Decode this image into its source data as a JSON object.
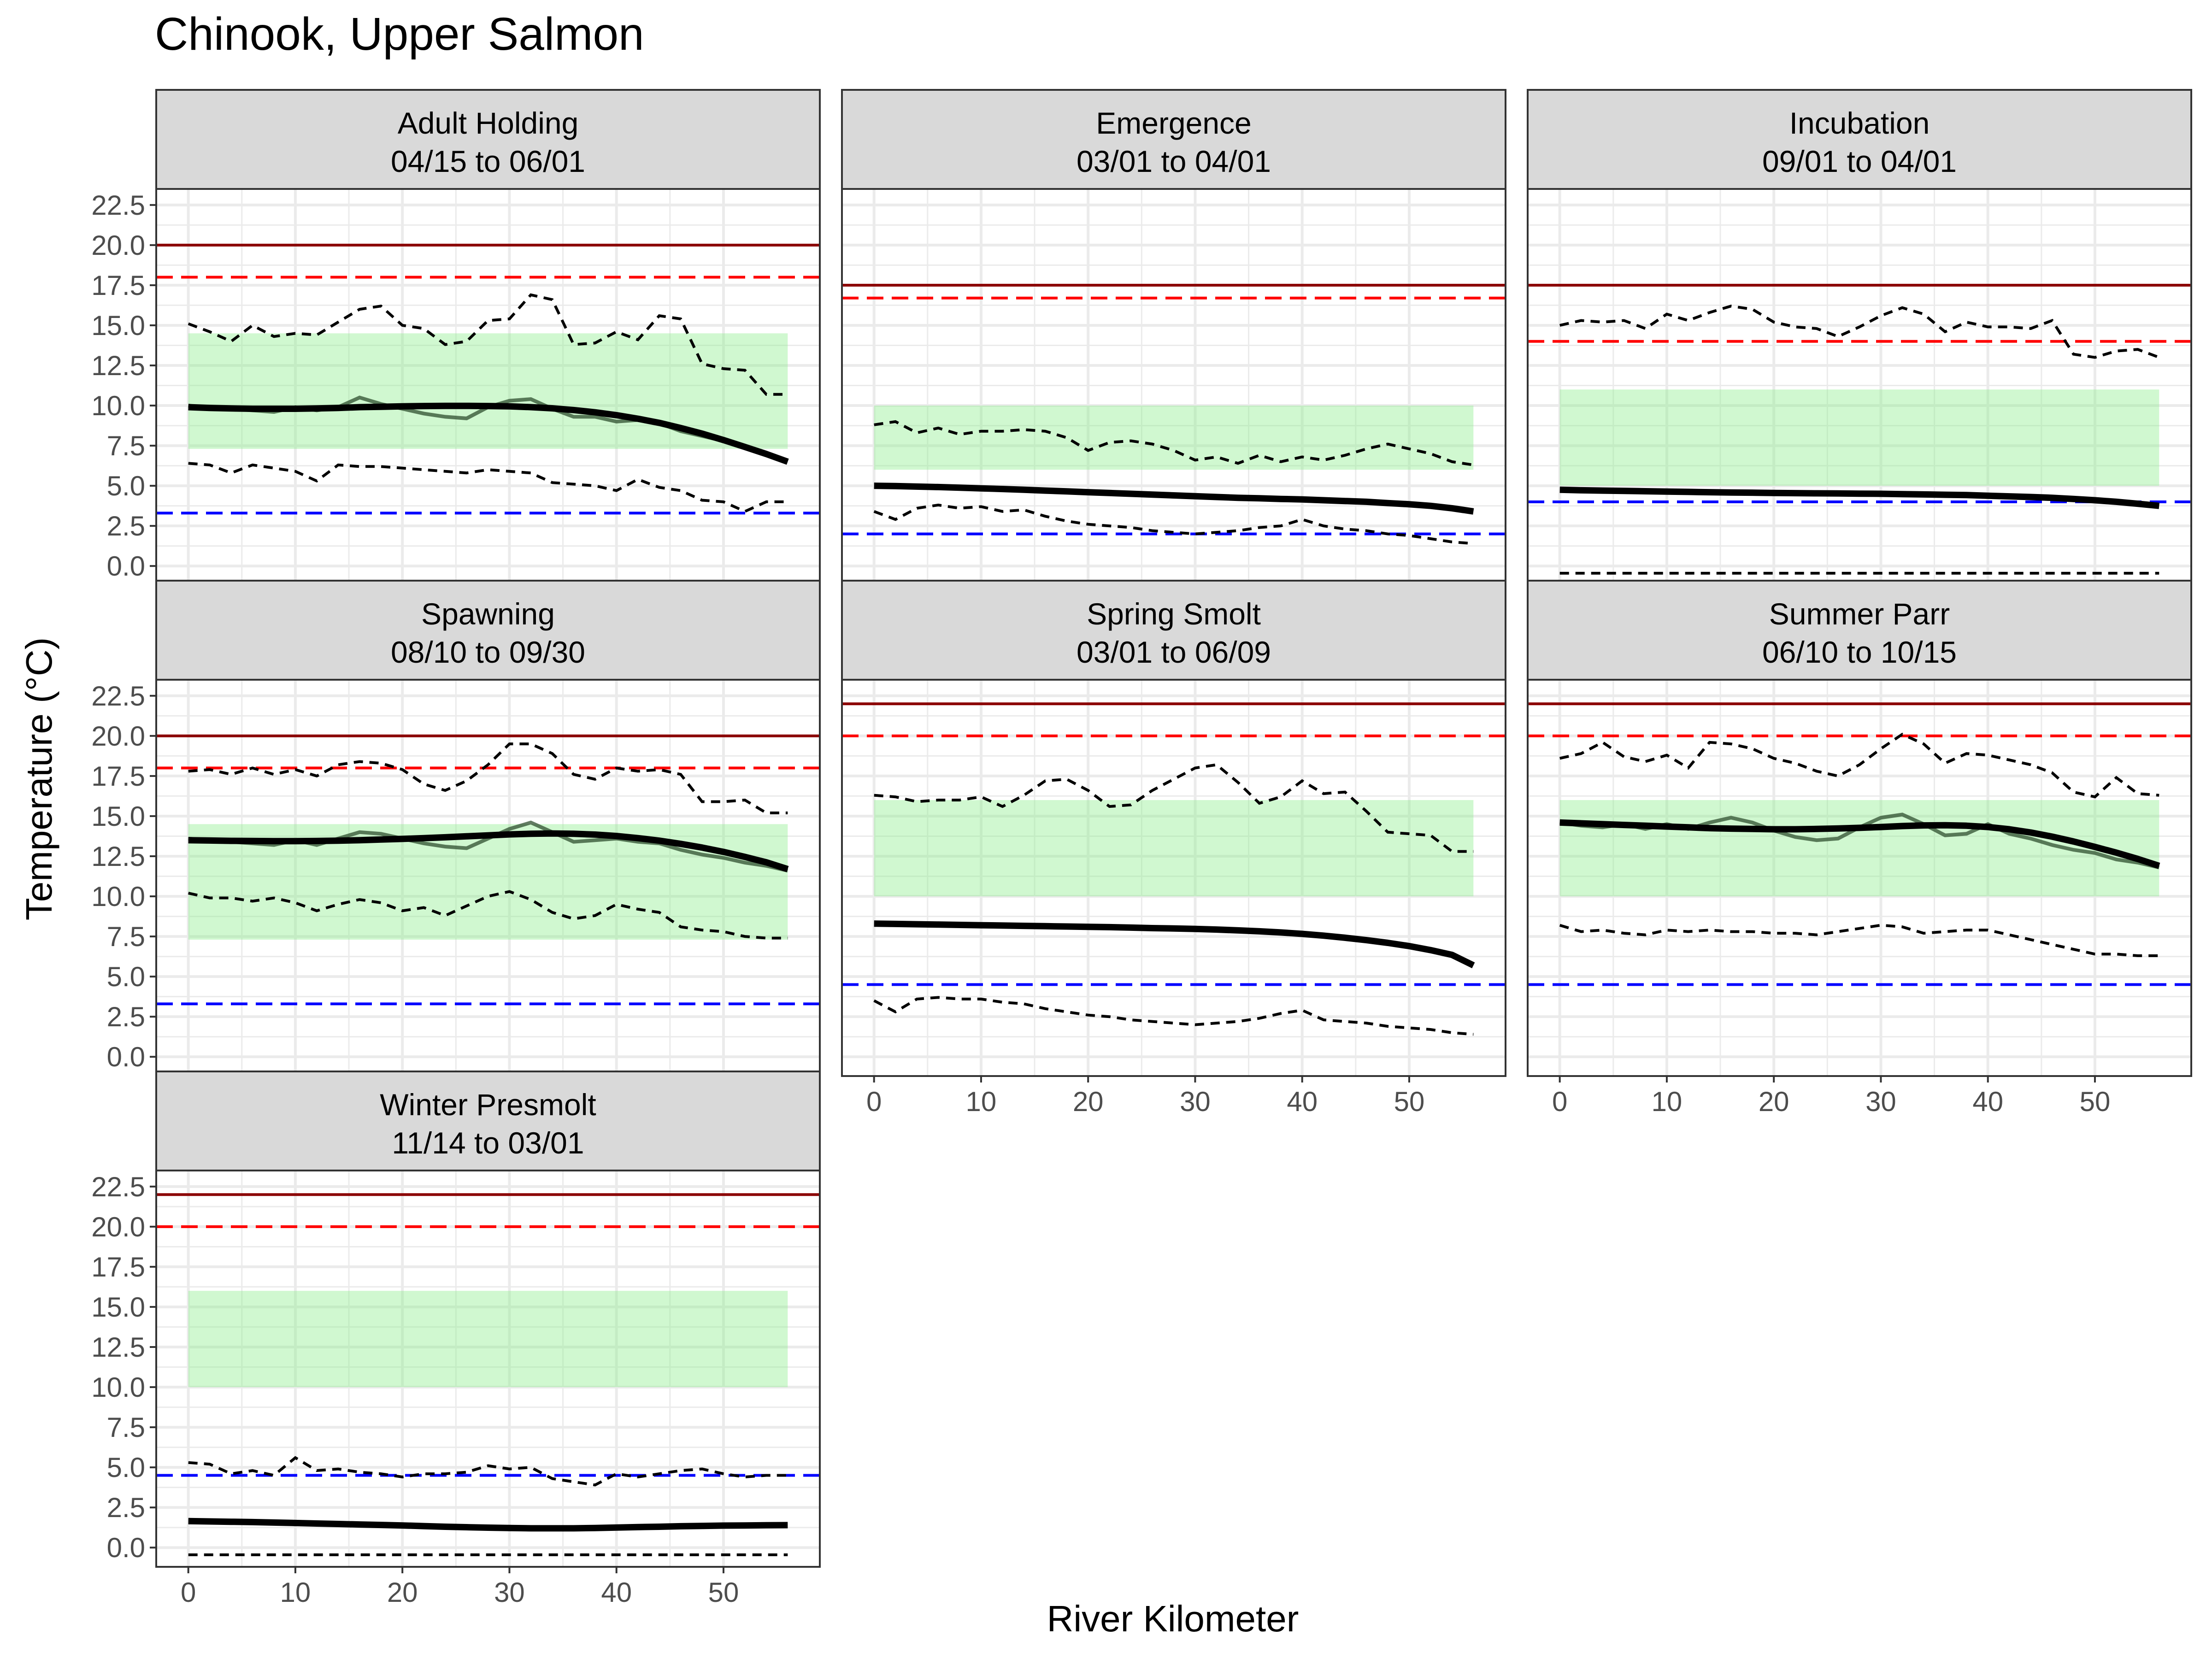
{
  "title": "Chinook, Upper Salmon",
  "xlabel": "River Kilometer",
  "ylabel": "Temperature (°C)",
  "colors": {
    "strip": "#d9d9d9",
    "criterion": "#8b0000",
    "upper_threshold": "#ff0000",
    "lower_threshold": "#0000ff",
    "optimal_band": "#90ee90",
    "median": "#000000",
    "observed": "#2f4f2f",
    "grid": "#ebebeb"
  },
  "chart_data": {
    "type": "line",
    "layout": "facet_wrap 3 columns",
    "xlim": [
      -3,
      59
    ],
    "ylim": [
      -1.2,
      23.5
    ],
    "x_ticks": [
      0,
      10,
      20,
      30,
      40,
      50
    ],
    "y_ticks": [
      0.0,
      2.5,
      5.0,
      7.5,
      10.0,
      12.5,
      15.0,
      17.5,
      20.0,
      22.5
    ],
    "y_tick_labels": [
      "0.0",
      "2.5",
      "5.0",
      "7.5",
      "10.0",
      "12.5",
      "15.0",
      "17.5",
      "20.0",
      "22.5"
    ],
    "x": [
      0,
      2,
      4,
      6,
      8,
      10,
      12,
      14,
      16,
      18,
      20,
      22,
      24,
      26,
      28,
      30,
      32,
      34,
      36,
      38,
      40,
      42,
      44,
      46,
      48,
      50,
      52,
      54,
      56
    ],
    "grid": true,
    "legend": "none",
    "panels": [
      {
        "name": "Adult Holding",
        "dates": "04/15 to 06/01",
        "criterion": 20.0,
        "upper_threshold": 18.0,
        "lower_threshold": 3.3,
        "optimal_band": [
          7.3,
          14.5
        ],
        "trend": [
          9.9,
          9.85,
          9.82,
          9.8,
          9.8,
          9.8,
          9.82,
          9.85,
          9.9,
          9.92,
          9.95,
          9.97,
          9.98,
          9.98,
          9.97,
          9.95,
          9.9,
          9.83,
          9.72,
          9.58,
          9.4,
          9.18,
          8.92,
          8.6,
          8.25,
          7.85,
          7.42,
          6.98,
          6.5
        ],
        "observed": [
          10.0,
          9.8,
          9.8,
          9.7,
          9.6,
          9.9,
          9.7,
          9.9,
          10.5,
          10.1,
          9.8,
          9.5,
          9.3,
          9.2,
          9.9,
          10.3,
          10.4,
          9.8,
          9.3,
          9.3,
          9.0,
          9.1,
          8.9,
          8.4,
          8.1,
          7.8,
          7.4,
          7.0,
          6.5
        ],
        "upper_quantile": [
          15.1,
          14.6,
          14.0,
          15.0,
          14.3,
          14.5,
          14.4,
          15.2,
          16.0,
          16.2,
          15.0,
          14.8,
          13.8,
          14.0,
          15.3,
          15.4,
          16.9,
          16.6,
          13.8,
          13.9,
          14.6,
          14.1,
          15.6,
          15.4,
          12.6,
          12.3,
          12.2,
          10.7,
          10.7
        ],
        "lower_quantile": [
          6.4,
          6.3,
          5.8,
          6.3,
          6.1,
          5.9,
          5.3,
          6.3,
          6.2,
          6.2,
          6.1,
          6.0,
          5.9,
          5.8,
          6.0,
          5.9,
          5.8,
          5.2,
          5.1,
          5.0,
          4.7,
          5.4,
          4.9,
          4.7,
          4.1,
          4.0,
          3.4,
          4.0,
          4.0
        ]
      },
      {
        "name": "Emergence",
        "dates": "03/01 to 04/01",
        "criterion": 17.5,
        "upper_threshold": 16.7,
        "lower_threshold": 2.0,
        "optimal_band": [
          6.0,
          10.0
        ],
        "trend": [
          5.0,
          4.98,
          4.95,
          4.92,
          4.88,
          4.84,
          4.8,
          4.75,
          4.7,
          4.65,
          4.6,
          4.55,
          4.5,
          4.45,
          4.4,
          4.35,
          4.3,
          4.25,
          4.22,
          4.18,
          4.15,
          4.1,
          4.05,
          4.0,
          3.92,
          3.85,
          3.75,
          3.6,
          3.4
        ],
        "upper_quantile": [
          8.8,
          9.0,
          8.3,
          8.6,
          8.2,
          8.4,
          8.4,
          8.5,
          8.4,
          8.0,
          7.2,
          7.7,
          7.8,
          7.6,
          7.2,
          6.6,
          6.8,
          6.4,
          6.9,
          6.5,
          6.8,
          6.6,
          6.9,
          7.3,
          7.6,
          7.3,
          7.0,
          6.5,
          6.3
        ],
        "lower_quantile": [
          3.4,
          2.9,
          3.6,
          3.8,
          3.6,
          3.7,
          3.4,
          3.5,
          3.1,
          2.8,
          2.6,
          2.5,
          2.4,
          2.2,
          2.1,
          2.0,
          2.1,
          2.2,
          2.4,
          2.5,
          2.9,
          2.5,
          2.3,
          2.2,
          2.0,
          1.9,
          1.7,
          1.5,
          1.4
        ]
      },
      {
        "name": "Incubation",
        "dates": "09/01 to 04/01",
        "criterion": 17.5,
        "upper_threshold": 14.0,
        "lower_threshold": 4.0,
        "optimal_band": [
          5.0,
          11.0
        ],
        "trend": [
          4.75,
          4.72,
          4.7,
          4.68,
          4.66,
          4.64,
          4.62,
          4.6,
          4.58,
          4.57,
          4.55,
          4.54,
          4.53,
          4.52,
          4.51,
          4.5,
          4.48,
          4.46,
          4.44,
          4.42,
          4.38,
          4.34,
          4.3,
          4.25,
          4.18,
          4.1,
          4.0,
          3.88,
          3.75
        ],
        "upper_quantile": [
          15.0,
          15.3,
          15.2,
          15.3,
          14.8,
          15.7,
          15.3,
          15.8,
          16.2,
          16.0,
          15.2,
          14.9,
          14.8,
          14.3,
          14.9,
          15.6,
          16.1,
          15.7,
          14.6,
          15.2,
          14.9,
          14.9,
          14.8,
          15.3,
          13.2,
          13.0,
          13.4,
          13.5,
          13.0
        ],
        "lower_quantile": [
          -0.45,
          -0.45,
          -0.45,
          -0.45,
          -0.45,
          -0.45,
          -0.45,
          -0.45,
          -0.45,
          -0.45,
          -0.45,
          -0.45,
          -0.45,
          -0.45,
          -0.45,
          -0.45,
          -0.45,
          -0.45,
          -0.45,
          -0.45,
          -0.45,
          -0.45,
          -0.45,
          -0.45,
          -0.45,
          -0.45,
          -0.45,
          -0.45,
          -0.45
        ]
      },
      {
        "name": "Spawning",
        "dates": "08/10 to 09/30",
        "criterion": 20.0,
        "upper_threshold": 18.0,
        "lower_threshold": 3.3,
        "optimal_band": [
          7.3,
          14.5
        ],
        "trend": [
          13.5,
          13.48,
          13.46,
          13.45,
          13.44,
          13.44,
          13.45,
          13.47,
          13.5,
          13.54,
          13.58,
          13.63,
          13.68,
          13.74,
          13.8,
          13.86,
          13.9,
          13.92,
          13.9,
          13.85,
          13.76,
          13.63,
          13.47,
          13.27,
          13.04,
          12.77,
          12.46,
          12.12,
          11.7
        ],
        "observed": [
          13.6,
          13.5,
          13.4,
          13.3,
          13.2,
          13.5,
          13.2,
          13.6,
          14.0,
          13.9,
          13.6,
          13.3,
          13.1,
          13.0,
          13.6,
          14.2,
          14.6,
          14.0,
          13.4,
          13.5,
          13.6,
          13.4,
          13.3,
          12.9,
          12.6,
          12.4,
          12.1,
          11.9,
          11.6
        ],
        "upper_quantile": [
          17.8,
          17.9,
          17.6,
          18.0,
          17.6,
          17.9,
          17.5,
          18.2,
          18.4,
          18.3,
          17.9,
          17.0,
          16.6,
          17.2,
          18.2,
          19.5,
          19.5,
          18.9,
          17.6,
          17.3,
          18.0,
          17.8,
          17.9,
          17.6,
          15.9,
          15.9,
          16.0,
          15.2,
          15.2
        ],
        "lower_quantile": [
          10.2,
          9.9,
          9.9,
          9.7,
          9.9,
          9.6,
          9.1,
          9.5,
          9.8,
          9.6,
          9.1,
          9.3,
          8.8,
          9.4,
          10.0,
          10.3,
          9.8,
          9.0,
          8.6,
          8.8,
          9.5,
          9.2,
          9.0,
          8.1,
          7.9,
          7.8,
          7.5,
          7.4,
          7.4
        ]
      },
      {
        "name": "Spring Smolt",
        "dates": "03/01 to 06/09",
        "criterion": 22.0,
        "upper_threshold": 20.0,
        "lower_threshold": 4.5,
        "optimal_band": [
          10.0,
          16.0
        ],
        "trend": [
          8.3,
          8.28,
          8.26,
          8.24,
          8.22,
          8.2,
          8.18,
          8.16,
          8.14,
          8.12,
          8.1,
          8.08,
          8.05,
          8.02,
          8.0,
          7.97,
          7.93,
          7.88,
          7.82,
          7.75,
          7.66,
          7.55,
          7.42,
          7.27,
          7.1,
          6.9,
          6.65,
          6.35,
          5.7
        ],
        "upper_quantile": [
          16.3,
          16.2,
          15.9,
          16.0,
          16.0,
          16.2,
          15.6,
          16.3,
          17.2,
          17.3,
          16.6,
          15.6,
          15.7,
          16.6,
          17.3,
          18.0,
          18.2,
          17.1,
          15.8,
          16.2,
          17.2,
          16.4,
          16.5,
          15.3,
          14.0,
          13.9,
          13.8,
          12.8,
          12.8
        ],
        "lower_quantile": [
          3.5,
          2.8,
          3.6,
          3.7,
          3.6,
          3.6,
          3.4,
          3.3,
          3.0,
          2.8,
          2.6,
          2.5,
          2.3,
          2.2,
          2.1,
          2.0,
          2.1,
          2.2,
          2.4,
          2.7,
          2.9,
          2.3,
          2.2,
          2.1,
          1.9,
          1.8,
          1.7,
          1.5,
          1.4
        ]
      },
      {
        "name": "Summer Parr",
        "dates": "06/10 to 10/15",
        "criterion": 22.0,
        "upper_threshold": 20.0,
        "lower_threshold": 4.5,
        "optimal_band": [
          10.0,
          16.0
        ],
        "trend": [
          14.6,
          14.55,
          14.5,
          14.45,
          14.4,
          14.35,
          14.3,
          14.25,
          14.22,
          14.2,
          14.18,
          14.18,
          14.2,
          14.23,
          14.27,
          14.32,
          14.38,
          14.42,
          14.43,
          14.4,
          14.32,
          14.18,
          13.98,
          13.72,
          13.42,
          13.08,
          12.72,
          12.33,
          11.9
        ],
        "observed": [
          14.6,
          14.4,
          14.3,
          14.5,
          14.2,
          14.5,
          14.2,
          14.6,
          14.9,
          14.6,
          14.1,
          13.7,
          13.5,
          13.6,
          14.3,
          14.9,
          15.1,
          14.5,
          13.8,
          13.9,
          14.5,
          13.9,
          13.6,
          13.2,
          12.9,
          12.7,
          12.3,
          12.1,
          11.8
        ],
        "upper_quantile": [
          18.6,
          18.9,
          19.6,
          18.7,
          18.4,
          18.8,
          18.0,
          19.6,
          19.5,
          19.2,
          18.6,
          18.3,
          17.8,
          17.5,
          18.2,
          19.2,
          20.1,
          19.5,
          18.3,
          18.9,
          18.8,
          18.5,
          18.2,
          17.7,
          16.5,
          16.2,
          17.4,
          16.4,
          16.3
        ],
        "lower_quantile": [
          8.2,
          7.8,
          7.9,
          7.7,
          7.6,
          7.9,
          7.8,
          7.9,
          7.8,
          7.8,
          7.7,
          7.7,
          7.6,
          7.8,
          8.0,
          8.2,
          8.1,
          7.7,
          7.8,
          7.9,
          7.9,
          7.6,
          7.3,
          7.0,
          6.7,
          6.4,
          6.4,
          6.3,
          6.3
        ]
      },
      {
        "name": "Winter Presmolt",
        "dates": "11/14 to 03/01",
        "criterion": 22.0,
        "upper_threshold": 20.0,
        "lower_threshold": 4.5,
        "optimal_band": [
          10.0,
          16.0
        ],
        "trend": [
          1.65,
          1.63,
          1.61,
          1.59,
          1.56,
          1.53,
          1.5,
          1.47,
          1.44,
          1.41,
          1.38,
          1.34,
          1.3,
          1.27,
          1.24,
          1.22,
          1.2,
          1.2,
          1.2,
          1.22,
          1.25,
          1.28,
          1.3,
          1.33,
          1.35,
          1.37,
          1.38,
          1.39,
          1.4
        ],
        "upper_quantile": [
          5.3,
          5.2,
          4.6,
          4.8,
          4.5,
          5.6,
          4.8,
          4.9,
          4.7,
          4.6,
          4.4,
          4.6,
          4.6,
          4.7,
          5.1,
          4.9,
          5.0,
          4.3,
          4.1,
          3.9,
          4.6,
          4.4,
          4.6,
          4.8,
          4.9,
          4.6,
          4.4,
          4.5,
          4.5
        ],
        "lower_quantile": [
          -0.45,
          -0.45,
          -0.45,
          -0.45,
          -0.45,
          -0.45,
          -0.45,
          -0.45,
          -0.45,
          -0.45,
          -0.45,
          -0.45,
          -0.45,
          -0.45,
          -0.45,
          -0.45,
          -0.45,
          -0.45,
          -0.45,
          -0.45,
          -0.45,
          -0.45,
          -0.45,
          -0.45,
          -0.45,
          -0.45,
          -0.45,
          -0.45,
          -0.45
        ]
      }
    ]
  }
}
